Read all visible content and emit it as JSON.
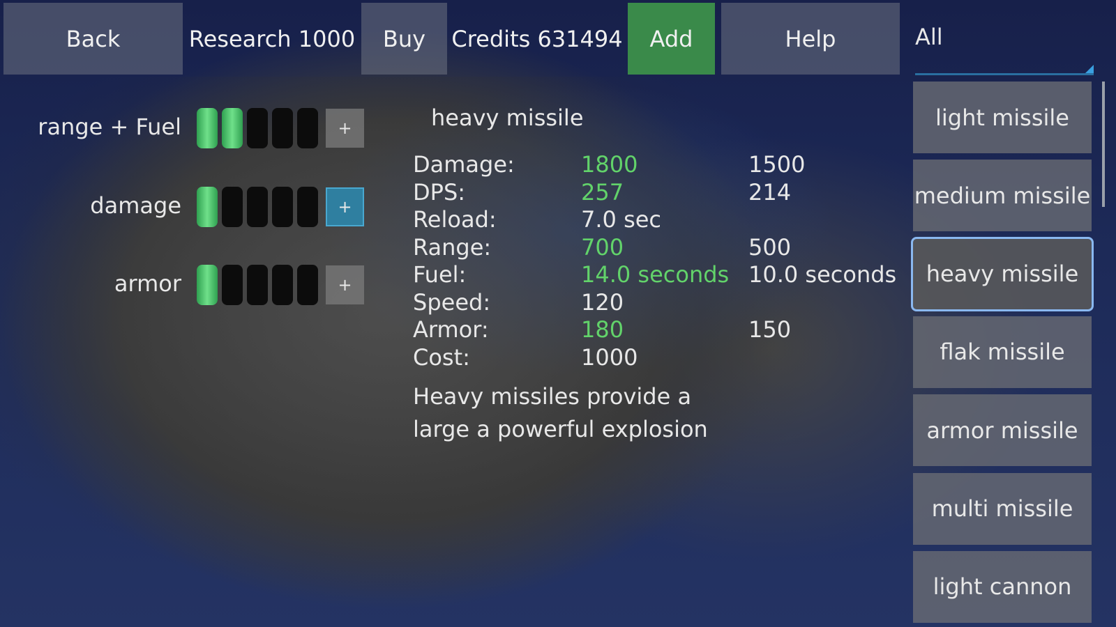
{
  "toolbar": {
    "back": "Back",
    "research": "Research 1000",
    "buy": "Buy",
    "credits": "Credits 631494",
    "add": "Add",
    "help": "Help",
    "filter": "All"
  },
  "upgrades": [
    {
      "label": "range + Fuel",
      "level": 2,
      "max": 5,
      "plus": "+"
    },
    {
      "label": "damage",
      "level": 1,
      "max": 5,
      "plus": "+"
    },
    {
      "label": "armor",
      "level": 1,
      "max": 5,
      "plus": "+"
    }
  ],
  "weapon": {
    "name": "heavy missile",
    "stats": [
      {
        "label": "Damage:",
        "value": "1800",
        "compare": "1500",
        "improved": true
      },
      {
        "label": "DPS:",
        "value": "257",
        "compare": "214",
        "improved": true
      },
      {
        "label": "Reload:",
        "value": "7.0 sec",
        "compare": "",
        "improved": false
      },
      {
        "label": "Range:",
        "value": "700",
        "compare": "500",
        "improved": true
      },
      {
        "label": "Fuel:",
        "value": "14.0 seconds",
        "compare": "10.0 seconds",
        "improved": true
      },
      {
        "label": "Speed:",
        "value": "120",
        "compare": "",
        "improved": false
      },
      {
        "label": "Armor:",
        "value": "180",
        "compare": "150",
        "improved": true
      },
      {
        "label": "Cost:",
        "value": "1000",
        "compare": "",
        "improved": false
      }
    ],
    "description_lines": [
      "Heavy missiles provide a",
      "large a powerful explosion"
    ]
  },
  "weapon_list": [
    "light missile",
    "medium missile",
    "heavy missile",
    "flak missile",
    "armor missile",
    "multi missile",
    "light cannon"
  ],
  "selected_index": 2,
  "colors": {
    "improved": "#62d36a",
    "add": "#3a8a4a",
    "accent": "#49a8d0"
  }
}
